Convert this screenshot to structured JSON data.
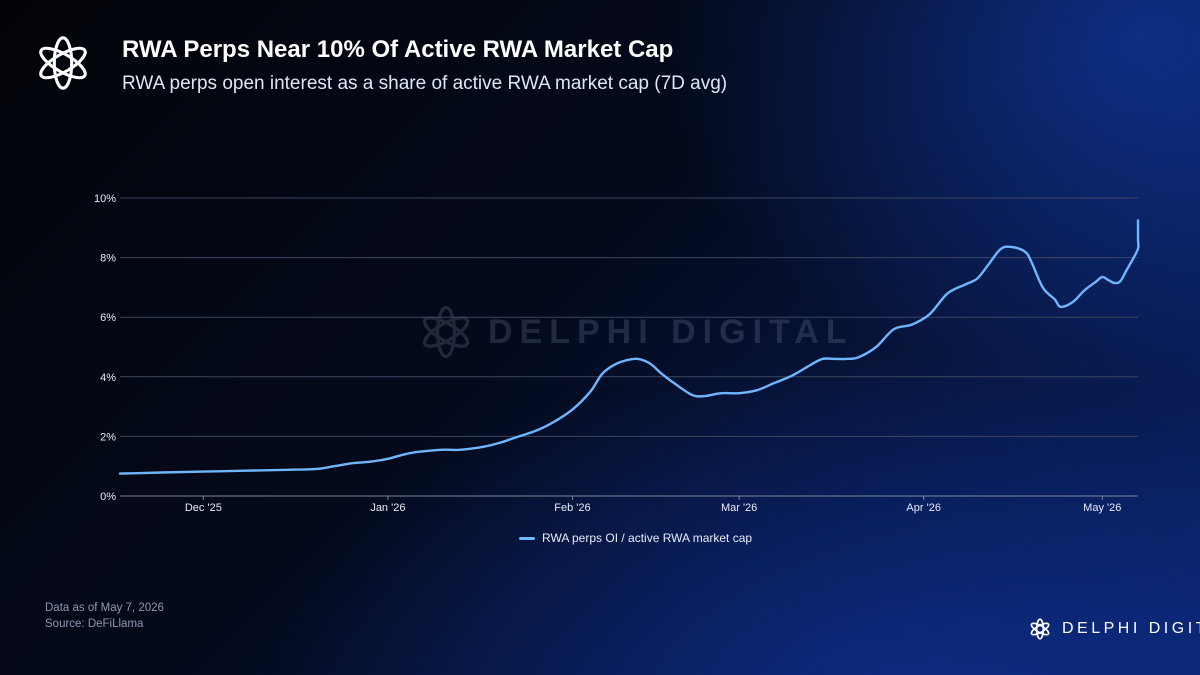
{
  "header": {
    "title": "RWA Perps Near 10% Of Active RWA Market Cap",
    "subtitle": "RWA perps open interest as a share of active RWA market cap (7D avg)"
  },
  "footer": {
    "data_as_of": "Data as of May 7, 2026",
    "source": "Source: DeFiLlama"
  },
  "branding": {
    "name": "DELPHI DIGITAL",
    "watermark": "DELPHI DIGITAL",
    "logo_icon": "delphi-knot-icon"
  },
  "colors": {
    "series": "#6fb6ff",
    "grid": "#3d465e",
    "tick_text": "#e6ecf8"
  },
  "chart_data": {
    "type": "line",
    "title": "",
    "xlabel": "",
    "ylabel": "",
    "y_ticks": [
      0,
      2,
      4,
      6,
      8,
      10
    ],
    "y_tick_labels": [
      "0%",
      "2%",
      "4%",
      "6%",
      "8%",
      "10%"
    ],
    "ylim": [
      0,
      10
    ],
    "xlim": [
      "2025-11-17",
      "2026-05-07"
    ],
    "x_ticks": [
      "2025-12-01",
      "2026-01-01",
      "2026-02-01",
      "2026-03-01",
      "2026-04-01",
      "2026-05-01"
    ],
    "x_tick_labels": [
      "Dec '25",
      "Jan '26",
      "Feb '26",
      "Mar '26",
      "Apr '26",
      "May '26"
    ],
    "grid": true,
    "legend_position": "bottom-center",
    "series": [
      {
        "name": "RWA perps OI / active RWA market cap",
        "points": [
          [
            "2025-11-17",
            0.75
          ],
          [
            "2025-11-24",
            0.79
          ],
          [
            "2025-12-01",
            0.82
          ],
          [
            "2025-12-08",
            0.85
          ],
          [
            "2025-12-15",
            0.88
          ],
          [
            "2025-12-20",
            0.91
          ],
          [
            "2025-12-23",
            1.0
          ],
          [
            "2025-12-26",
            1.1
          ],
          [
            "2025-12-29",
            1.15
          ],
          [
            "2026-01-01",
            1.25
          ],
          [
            "2026-01-05",
            1.45
          ],
          [
            "2026-01-10",
            1.55
          ],
          [
            "2026-01-13",
            1.55
          ],
          [
            "2026-01-17",
            1.65
          ],
          [
            "2026-01-20",
            1.8
          ],
          [
            "2026-01-23",
            2.0
          ],
          [
            "2026-01-26",
            2.2
          ],
          [
            "2026-01-29",
            2.5
          ],
          [
            "2026-02-01",
            2.9
          ],
          [
            "2026-02-04",
            3.5
          ],
          [
            "2026-02-06",
            4.1
          ],
          [
            "2026-02-08",
            4.4
          ],
          [
            "2026-02-10",
            4.55
          ],
          [
            "2026-02-12",
            4.6
          ],
          [
            "2026-02-14",
            4.45
          ],
          [
            "2026-02-16",
            4.1
          ],
          [
            "2026-02-18",
            3.8
          ],
          [
            "2026-02-21",
            3.4
          ],
          [
            "2026-02-23",
            3.35
          ],
          [
            "2026-02-26",
            3.45
          ],
          [
            "2026-03-01",
            3.45
          ],
          [
            "2026-03-04",
            3.55
          ],
          [
            "2026-03-07",
            3.8
          ],
          [
            "2026-03-10",
            4.05
          ],
          [
            "2026-03-13",
            4.4
          ],
          [
            "2026-03-15",
            4.6
          ],
          [
            "2026-03-17",
            4.6
          ],
          [
            "2026-03-19",
            4.6
          ],
          [
            "2026-03-21",
            4.65
          ],
          [
            "2026-03-24",
            5.0
          ],
          [
            "2026-03-27",
            5.6
          ],
          [
            "2026-03-30",
            5.75
          ],
          [
            "2026-04-02",
            6.1
          ],
          [
            "2026-04-05",
            6.8
          ],
          [
            "2026-04-08",
            7.1
          ],
          [
            "2026-04-10",
            7.3
          ],
          [
            "2026-04-12",
            7.8
          ],
          [
            "2026-04-14",
            8.3
          ],
          [
            "2026-04-16",
            8.35
          ],
          [
            "2026-04-18",
            8.2
          ],
          [
            "2026-04-19",
            7.9
          ],
          [
            "2026-04-21",
            7.0
          ],
          [
            "2026-04-23",
            6.6
          ],
          [
            "2026-04-24",
            6.35
          ],
          [
            "2026-04-26",
            6.5
          ],
          [
            "2026-04-28",
            6.9
          ],
          [
            "2026-04-30",
            7.2
          ],
          [
            "2026-05-01",
            7.35
          ],
          [
            "2026-05-02",
            7.25
          ],
          [
            "2026-05-03",
            7.15
          ],
          [
            "2026-05-04",
            7.2
          ],
          [
            "2026-05-05",
            7.55
          ],
          [
            "2026-05-06",
            7.9
          ],
          [
            "2026-05-07",
            8.3
          ],
          [
            "2026-05-08",
            8.6
          ],
          [
            "2026-05-09",
            8.9
          ],
          [
            "2026-05-10",
            9.2
          ],
          [
            "2026-05-11",
            9.25
          ]
        ]
      }
    ]
  }
}
